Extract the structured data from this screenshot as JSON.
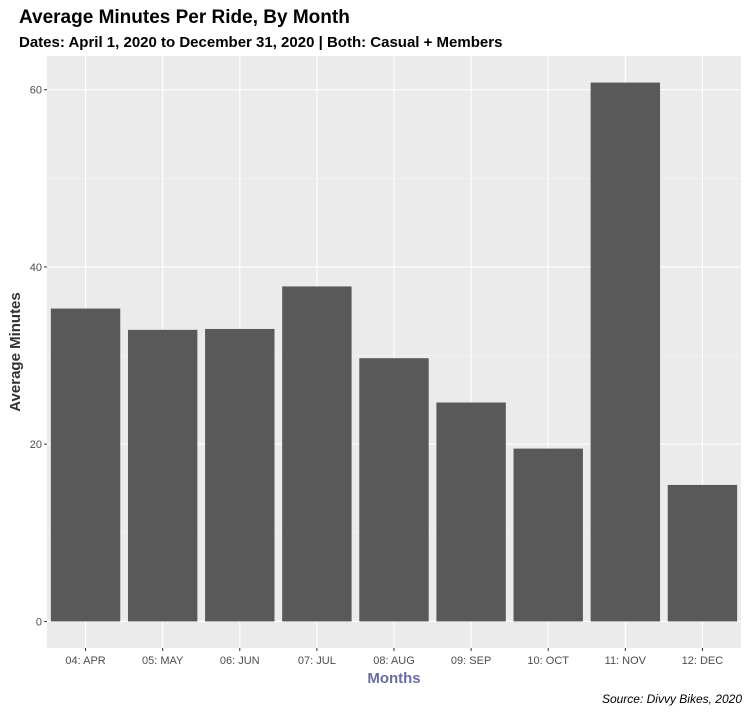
{
  "chart_data": {
    "type": "bar",
    "title": "Average Minutes Per Ride, By Month",
    "subtitle": "Dates: April 1, 2020 to December 31, 2020 | Both: Casual + Members",
    "xlabel": "Months",
    "ylabel": "Average Minutes",
    "caption": "Source: Divvy Bikes, 2020",
    "categories": [
      "04: APR",
      "05: MAY",
      "06: JUN",
      "07: JUL",
      "08: AUG",
      "09: SEP",
      "10: OCT",
      "11: NOV",
      "12: DEC"
    ],
    "values": [
      35.3,
      32.9,
      33.0,
      37.8,
      29.7,
      24.7,
      19.5,
      60.8,
      15.4
    ],
    "ylim": [
      -3.0,
      63.8
    ],
    "yticks": [
      0,
      20,
      40,
      60
    ],
    "ytick_labels": [
      "0",
      "20",
      "40",
      "60"
    ],
    "grid": true,
    "legend": "none",
    "colors": {
      "bar": "#595959",
      "panel_background": "#ebebeb",
      "grid_major": "#ffffff",
      "grid_minor": "#f5f5f5",
      "xlabel": "#6a6e9e"
    }
  }
}
